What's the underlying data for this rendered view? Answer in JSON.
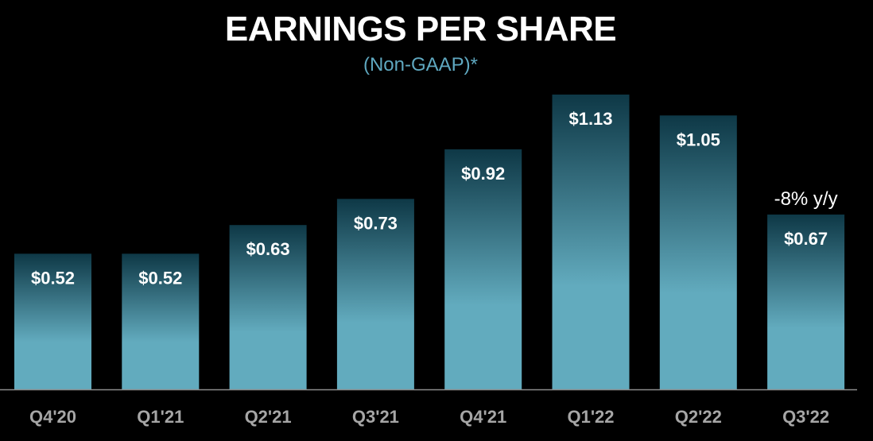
{
  "chart_data": {
    "type": "bar",
    "title": "EARNINGS PER SHARE",
    "subtitle": "(Non-GAAP)*",
    "categories": [
      "Q4'20",
      "Q1'21",
      "Q2'21",
      "Q3'21",
      "Q4'21",
      "Q1'22",
      "Q2'22",
      "Q3'22"
    ],
    "values": [
      0.52,
      0.52,
      0.63,
      0.73,
      0.92,
      1.13,
      1.05,
      0.67
    ],
    "data_labels": [
      "$0.52",
      "$0.52",
      "$0.63",
      "$0.73",
      "$0.92",
      "$1.13",
      "$1.05",
      "$0.67"
    ],
    "annotations": [
      {
        "category": "Q3'22",
        "text": "-8% y/y"
      }
    ],
    "xlabel": "",
    "ylabel": "",
    "ylim": [
      0,
      1.13
    ],
    "grid": false,
    "legend": "none"
  },
  "colors": {
    "background": "#000000",
    "title": "#ffffff",
    "subtitle": "#5fa8c0",
    "bar_top": "#0e3846",
    "bar_bottom": "#62abbe",
    "baseline": "#8c8c8c",
    "tick_label": "#a6a6a6",
    "data_label": "#ffffff"
  }
}
